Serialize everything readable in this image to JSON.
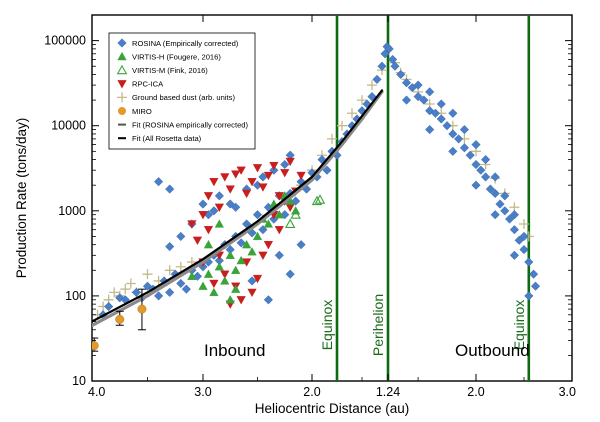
{
  "chart_data": {
    "type": "scatter",
    "xlabel": "Heliocentric Distance (au)",
    "ylabel": "Production Rate (tons/day)",
    "yscale": "log",
    "ylim": [
      10,
      200000
    ],
    "x_axis_note": "broken axis: inbound 4.0 au to 1.24 au (perihelion), outbound 1.24 au to 3.0 au",
    "x_ticks": [
      "4.0",
      "3.0",
      "2.0",
      "1.24",
      "2.0",
      "3.0"
    ],
    "y_ticks": [
      "10",
      "100",
      "1000",
      "10000",
      "100000"
    ],
    "legend_position": "top-left",
    "legend": [
      {
        "label": "ROSINA (Empirically corrected)",
        "marker": "diamond",
        "color": "#4a7fc8"
      },
      {
        "label": "VIRTIS-H (Fougere, 2016)",
        "marker": "triangle-up",
        "color": "#3aa33a"
      },
      {
        "label": "VIRTIS-M (Fink, 2016)",
        "marker": "triangle-up-open",
        "color": "#3aa33a"
      },
      {
        "label": "RPC-ICA",
        "marker": "triangle-down",
        "color": "#c81e1e"
      },
      {
        "label": "Ground based dust (arb. units)",
        "marker": "plus",
        "color": "#c4b98a"
      },
      {
        "label": "MIRO",
        "marker": "circle",
        "color": "#e39a2a"
      },
      {
        "label": "Fit (ROSINA empirically corrected)",
        "marker": "line",
        "color": "#999999"
      },
      {
        "label": "Fit (All Rosetta data)",
        "marker": "line",
        "color": "#000000"
      }
    ],
    "region_labels": [
      "Inbound",
      "Outbound"
    ],
    "vertical_lines": [
      {
        "label": "Equinox",
        "side": "inbound",
        "r_au": 1.75
      },
      {
        "label": "Perihelion",
        "side": "inbound",
        "r_au": 1.24
      },
      {
        "label": "Equinox",
        "side": "outbound",
        "r_au": 2.55
      }
    ],
    "series": [
      {
        "name": "ROSINA (Empirically corrected)",
        "note": "dense scatter; representative points read from the figure",
        "inbound": [
          [
            3.9,
            60
          ],
          [
            3.85,
            75
          ],
          [
            3.75,
            95
          ],
          [
            3.7,
            90
          ],
          [
            3.6,
            110
          ],
          [
            3.55,
            95
          ],
          [
            3.5,
            130
          ],
          [
            3.45,
            120
          ],
          [
            3.4,
            100
          ],
          [
            3.35,
            150
          ],
          [
            3.3,
            110
          ],
          [
            3.25,
            180
          ],
          [
            3.2,
            140
          ],
          [
            3.15,
            120
          ],
          [
            3.1,
            200
          ],
          [
            3.05,
            170
          ],
          [
            3.0,
            220
          ],
          [
            2.95,
            250
          ],
          [
            2.9,
            300
          ],
          [
            2.85,
            260
          ],
          [
            2.8,
            400
          ],
          [
            2.75,
            350
          ],
          [
            2.7,
            500
          ],
          [
            2.65,
            420
          ],
          [
            2.6,
            700
          ],
          [
            2.55,
            550
          ],
          [
            2.5,
            900
          ],
          [
            2.45,
            600
          ],
          [
            2.4,
            1100
          ],
          [
            2.35,
            800
          ],
          [
            2.3,
            1500
          ],
          [
            2.25,
            900
          ],
          [
            2.2,
            1600
          ],
          [
            2.15,
            1300
          ],
          [
            2.1,
            2200
          ],
          [
            2.05,
            1800
          ],
          [
            2.0,
            2800
          ],
          [
            1.95,
            2500
          ],
          [
            1.9,
            4000
          ],
          [
            1.85,
            3000
          ],
          [
            1.8,
            5000
          ],
          [
            1.75,
            4500
          ],
          [
            1.7,
            6500
          ],
          [
            1.65,
            8000
          ],
          [
            1.6,
            10000
          ],
          [
            1.55,
            12000
          ],
          [
            1.5,
            15000
          ],
          [
            1.45,
            18000
          ],
          [
            1.4,
            22000
          ],
          [
            1.35,
            35000
          ],
          [
            1.3,
            50000
          ],
          [
            1.27,
            70000
          ],
          [
            1.25,
            85000
          ],
          [
            3.3,
            380
          ],
          [
            3.2,
            500
          ],
          [
            3.1,
            700
          ],
          [
            2.95,
            900
          ],
          [
            2.85,
            1500
          ],
          [
            2.75,
            1200
          ],
          [
            2.6,
            1800
          ],
          [
            2.5,
            2000
          ],
          [
            2.45,
            2500
          ],
          [
            2.35,
            3000
          ],
          [
            2.25,
            3500
          ],
          [
            2.2,
            4500
          ],
          [
            3.0,
            1200
          ],
          [
            2.9,
            1000
          ],
          [
            2.7,
            1100
          ],
          [
            2.55,
            150
          ],
          [
            2.4,
            90
          ],
          [
            2.3,
            300
          ],
          [
            2.2,
            180
          ],
          [
            2.1,
            400
          ],
          [
            3.4,
            2200
          ],
          [
            3.3,
            1800
          ]
        ],
        "outbound": [
          [
            1.25,
            80000
          ],
          [
            1.28,
            60000
          ],
          [
            1.3,
            50000
          ],
          [
            1.35,
            40000
          ],
          [
            1.4,
            32000
          ],
          [
            1.45,
            28000
          ],
          [
            1.5,
            22000
          ],
          [
            1.55,
            20000
          ],
          [
            1.6,
            15000
          ],
          [
            1.65,
            14000
          ],
          [
            1.7,
            12000
          ],
          [
            1.75,
            10000
          ],
          [
            1.8,
            8000
          ],
          [
            1.85,
            7000
          ],
          [
            1.9,
            5500
          ],
          [
            1.95,
            4500
          ],
          [
            2.0,
            3500
          ],
          [
            2.05,
            3000
          ],
          [
            2.1,
            2500
          ],
          [
            2.15,
            1800
          ],
          [
            2.2,
            1600
          ],
          [
            2.25,
            1200
          ],
          [
            2.3,
            1000
          ],
          [
            2.35,
            800
          ],
          [
            2.4,
            600
          ],
          [
            2.45,
            450
          ],
          [
            2.5,
            350
          ],
          [
            2.55,
            250
          ],
          [
            2.6,
            180
          ],
          [
            2.62,
            130
          ],
          [
            1.5,
            30000
          ],
          [
            1.6,
            25000
          ],
          [
            1.7,
            18000
          ],
          [
            1.8,
            14000
          ],
          [
            1.9,
            9000
          ],
          [
            2.0,
            6000
          ],
          [
            2.1,
            4000
          ],
          [
            2.2,
            2500
          ],
          [
            2.3,
            1500
          ],
          [
            2.4,
            900
          ],
          [
            2.5,
            500
          ],
          [
            1.4,
            20000
          ],
          [
            1.6,
            9000
          ],
          [
            1.8,
            5000
          ],
          [
            2.0,
            2000
          ],
          [
            2.2,
            900
          ],
          [
            2.4,
            300
          ],
          [
            2.55,
            100
          ]
        ]
      },
      {
        "name": "VIRTIS-H (Fougere, 2016)",
        "inbound": [
          [
            3.0,
            130
          ],
          [
            2.95,
            180
          ],
          [
            2.9,
            110
          ],
          [
            2.85,
            220
          ],
          [
            2.8,
            150
          ],
          [
            2.75,
            300
          ],
          [
            2.7,
            200
          ],
          [
            2.65,
            260
          ],
          [
            2.6,
            400
          ],
          [
            2.55,
            330
          ],
          [
            2.5,
            500
          ],
          [
            2.45,
            800
          ],
          [
            2.4,
            700
          ],
          [
            2.35,
            1200
          ],
          [
            2.3,
            900
          ],
          [
            2.25,
            1500
          ],
          [
            2.2,
            1300
          ],
          [
            2.15,
            1000
          ],
          [
            2.85,
            700
          ],
          [
            2.75,
            90
          ],
          [
            2.7,
            120
          ],
          [
            3.1,
            170
          ],
          [
            2.95,
            400
          ]
        ]
      },
      {
        "name": "VIRTIS-M (Fink, 2016)",
        "inbound": [
          [
            2.2,
            700
          ],
          [
            2.15,
            900
          ],
          [
            1.95,
            1300
          ],
          [
            1.92,
            1350
          ]
        ]
      },
      {
        "name": "RPC-ICA",
        "inbound": [
          [
            3.1,
            700
          ],
          [
            3.0,
            900
          ],
          [
            2.95,
            1500
          ],
          [
            2.9,
            2200
          ],
          [
            2.85,
            1100
          ],
          [
            2.8,
            2500
          ],
          [
            2.75,
            1800
          ],
          [
            2.7,
            2700
          ],
          [
            2.65,
            3000
          ],
          [
            2.6,
            1600
          ],
          [
            2.55,
            2200
          ],
          [
            2.5,
            3200
          ],
          [
            2.45,
            1900
          ],
          [
            2.4,
            2600
          ],
          [
            2.35,
            3400
          ],
          [
            2.3,
            1500
          ],
          [
            2.25,
            2800
          ],
          [
            2.2,
            3800
          ],
          [
            3.05,
            450
          ],
          [
            2.95,
            600
          ],
          [
            2.85,
            300
          ],
          [
            2.8,
            180
          ],
          [
            2.7,
            130
          ],
          [
            2.6,
            250
          ],
          [
            2.5,
            160
          ],
          [
            2.4,
            400
          ],
          [
            2.3,
            600
          ],
          [
            2.2,
            1100
          ],
          [
            3.0,
            250
          ],
          [
            2.9,
            140
          ],
          [
            2.75,
            80
          ],
          [
            2.65,
            90
          ],
          [
            2.55,
            110
          ],
          [
            2.45,
            300
          ],
          [
            2.35,
            900
          ],
          [
            2.25,
            1300
          ],
          [
            2.15,
            1700
          ],
          [
            2.1,
            2600
          ]
        ]
      },
      {
        "name": "Ground based dust (arb. units)",
        "inbound": [
          [
            3.95,
            60
          ],
          [
            3.9,
            75
          ],
          [
            3.85,
            90
          ],
          [
            3.8,
            110
          ],
          [
            3.75,
            100
          ],
          [
            3.7,
            120
          ],
          [
            3.65,
            140
          ],
          [
            3.6,
            110
          ],
          [
            3.5,
            180
          ],
          [
            3.4,
            150
          ],
          [
            3.3,
            200
          ],
          [
            3.2,
            220
          ],
          [
            3.1,
            250
          ],
          [
            2.2,
            1500
          ],
          [
            2.1,
            2000
          ],
          [
            2.0,
            3000
          ],
          [
            1.9,
            4500
          ],
          [
            1.8,
            7000
          ],
          [
            1.7,
            10000
          ],
          [
            1.6,
            14000
          ],
          [
            1.5,
            20000
          ],
          [
            1.4,
            30000
          ],
          [
            1.3,
            45000
          ]
        ],
        "outbound": [
          [
            1.3,
            55000
          ],
          [
            1.35,
            42000
          ],
          [
            1.4,
            35000
          ],
          [
            1.5,
            25000
          ],
          [
            1.6,
            18000
          ],
          [
            1.7,
            14000
          ],
          [
            1.8,
            10000
          ],
          [
            1.9,
            7000
          ],
          [
            2.0,
            5000
          ],
          [
            2.1,
            3500
          ],
          [
            2.2,
            2400
          ],
          [
            2.3,
            1600
          ],
          [
            2.4,
            1100
          ],
          [
            2.5,
            700
          ],
          [
            2.55,
            500
          ]
        ]
      },
      {
        "name": "MIRO",
        "inbound": [
          [
            3.98,
            26,
            6
          ],
          [
            3.75,
            53,
            13
          ],
          [
            3.55,
            70,
            50
          ]
        ]
      },
      {
        "name": "Fit (ROSINA empirically corrected)",
        "inbound": [
          [
            4.0,
            45
          ],
          [
            3.5,
            100
          ],
          [
            3.0,
            250
          ],
          [
            2.5,
            700
          ],
          [
            2.0,
            2300
          ],
          [
            1.7,
            6000
          ],
          [
            1.5,
            12000
          ],
          [
            1.3,
            25000
          ]
        ]
      },
      {
        "name": "Fit (All Rosetta data)",
        "inbound": [
          [
            4.0,
            50
          ],
          [
            3.5,
            110
          ],
          [
            3.0,
            270
          ],
          [
            2.5,
            750
          ],
          [
            2.0,
            2500
          ],
          [
            1.7,
            6500
          ],
          [
            1.5,
            13000
          ],
          [
            1.3,
            26000
          ]
        ]
      }
    ]
  }
}
